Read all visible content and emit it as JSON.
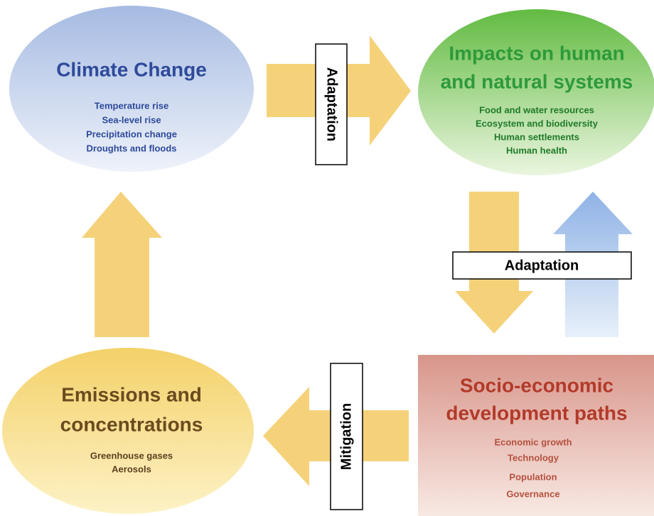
{
  "nodes": [
    {
      "title": [
        "Climate Change"
      ],
      "items": [
        "Temperature rise",
        "Sea-level rise",
        "Precipitation change",
        "Droughts and floods"
      ]
    },
    {
      "title": [
        "Impacts on human",
        "and natural systems"
      ],
      "items": [
        "Food and water resources",
        "Ecosystem and biodiversity",
        "Human settlements",
        "Human health"
      ]
    },
    {
      "title": [
        "Socio-economic",
        "development paths"
      ],
      "items": [
        "Economic growth",
        "Technology",
        "Population",
        "Governance"
      ]
    },
    {
      "title": [
        "Emissions and",
        "concentrations"
      ],
      "items": [
        "Greenhouse gases",
        "Aerosols"
      ]
    }
  ],
  "labels": [
    "Adaptation",
    "Adaptation",
    "Mitigation"
  ]
}
